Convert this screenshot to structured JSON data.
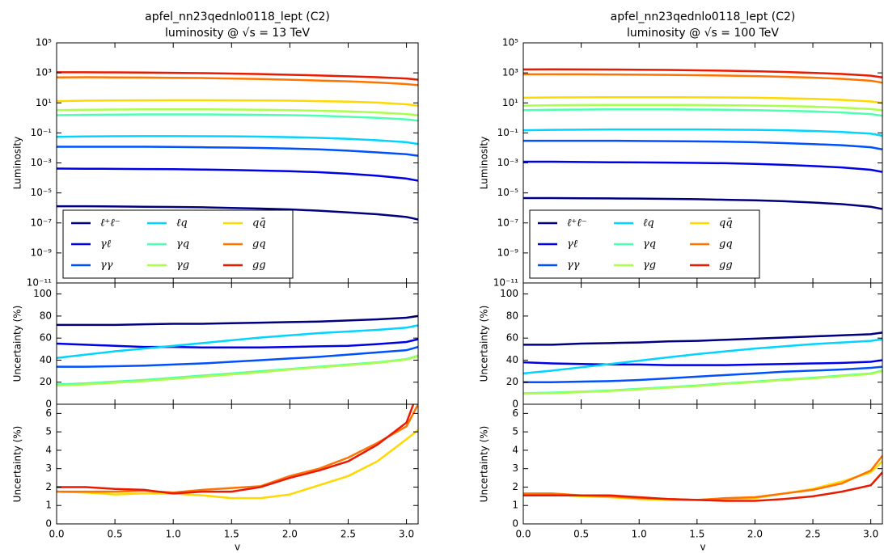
{
  "chart_data": [
    {
      "type": "line",
      "title": "apfel_nn23qednlo0118_lept (C2)",
      "subtitle": "luminosity @ √s = 13 TeV",
      "ylabel": "Luminosity",
      "log_scale": true,
      "legend": "lower left",
      "x": [
        0,
        0.25,
        0.5,
        0.75,
        1.0,
        1.25,
        1.5,
        1.75,
        2.0,
        2.25,
        2.5,
        2.75,
        3.0,
        3.1
      ],
      "xlim": [
        0,
        3.1
      ],
      "xticks": [
        0,
        0.5,
        1,
        1.5,
        2,
        2.5,
        3
      ],
      "ylim": [
        1e-11,
        100000
      ],
      "yticks": [
        {
          "value": 1e-11,
          "label": "10⁻¹¹"
        },
        {
          "value": 1e-09,
          "label": "10⁻⁹"
        },
        {
          "value": 1e-07,
          "label": "10⁻⁷"
        },
        {
          "value": 1e-05,
          "label": "10⁻⁵"
        },
        {
          "value": 0.001,
          "label": "10⁻³"
        },
        {
          "value": 0.1,
          "label": "10⁻¹"
        },
        {
          "value": 10,
          "label": "10¹"
        },
        {
          "value": 1000,
          "label": "10³"
        },
        {
          "value": 100000,
          "label": "10⁵"
        }
      ],
      "series": [
        {
          "name": "ℓ⁺ℓ⁻",
          "color": "#00007f",
          "values": [
            1.3e-06,
            1.3e-06,
            1.25e-06,
            1.2e-06,
            1.15e-06,
            1.1e-06,
            1e-06,
            9e-07,
            8e-07,
            6.5e-07,
            5e-07,
            3.8e-07,
            2.5e-07,
            1.7e-07
          ]
        },
        {
          "name": "γℓ",
          "color": "#0000e8",
          "values": [
            0.00042,
            0.00041,
            0.0004,
            0.00039,
            0.00038,
            0.00036,
            0.00034,
            0.00031,
            0.00028,
            0.00024,
            0.00019,
            0.00014,
            9e-05,
            6.5e-05
          ]
        },
        {
          "name": "γγ",
          "color": "#0050ff",
          "values": [
            0.012,
            0.012,
            0.012,
            0.012,
            0.0115,
            0.011,
            0.0105,
            0.01,
            0.009,
            0.008,
            0.0065,
            0.005,
            0.0038,
            0.003
          ]
        },
        {
          "name": "ℓq",
          "color": "#00d4ff",
          "values": [
            0.055,
            0.058,
            0.06,
            0.061,
            0.061,
            0.06,
            0.059,
            0.056,
            0.052,
            0.047,
            0.04,
            0.032,
            0.024,
            0.018
          ]
        },
        {
          "name": "γq",
          "color": "#4dffb0",
          "values": [
            1.5,
            1.6,
            1.65,
            1.7,
            1.7,
            1.7,
            1.65,
            1.6,
            1.5,
            1.4,
            1.2,
            1.0,
            0.8,
            0.65
          ]
        },
        {
          "name": "γg",
          "color": "#aaff4d",
          "values": [
            3.3,
            3.5,
            3.6,
            3.7,
            3.7,
            3.7,
            3.6,
            3.5,
            3.3,
            3.0,
            2.7,
            2.3,
            1.8,
            1.5
          ]
        },
        {
          "name": "qq̄",
          "color": "#ffd800",
          "values": [
            13,
            14,
            14.5,
            14.8,
            15,
            15,
            14.8,
            14.5,
            14,
            13,
            12,
            10.5,
            8,
            6.5
          ]
        },
        {
          "name": "gq",
          "color": "#ff7300",
          "values": [
            500,
            510,
            500,
            490,
            470,
            450,
            420,
            390,
            350,
            310,
            270,
            230,
            180,
            150
          ]
        },
        {
          "name": "gg",
          "color": "#e81a00",
          "values": [
            1100,
            1100,
            1080,
            1050,
            1000,
            960,
            900,
            830,
            750,
            670,
            590,
            510,
            420,
            350
          ]
        }
      ]
    },
    {
      "type": "line",
      "ylabel": "Uncertainty (%)",
      "x": [
        0,
        0.25,
        0.5,
        0.75,
        1.0,
        1.25,
        1.5,
        1.75,
        2.0,
        2.25,
        2.5,
        2.75,
        3.0,
        3.1
      ],
      "xlim": [
        0,
        3.1
      ],
      "xticks": [
        0,
        0.5,
        1,
        1.5,
        2,
        2.5,
        3
      ],
      "ylim": [
        0,
        110
      ],
      "yticks": [
        0,
        20,
        40,
        60,
        80,
        100
      ],
      "series": [
        {
          "color": "#00007f",
          "values": [
            72,
            72,
            72,
            72.5,
            73,
            73,
            73.5,
            74,
            74.5,
            75,
            76,
            77,
            78.5,
            80
          ]
        },
        {
          "color": "#0000e8",
          "values": [
            55,
            54,
            53,
            52,
            52,
            51.5,
            51.5,
            51.5,
            52,
            52.5,
            53,
            54.5,
            56.5,
            59
          ]
        },
        {
          "color": "#00d4ff",
          "values": [
            42,
            45,
            48,
            50.5,
            53,
            55.5,
            58,
            60.5,
            62.5,
            64.5,
            66,
            67.5,
            69.5,
            71.5
          ]
        },
        {
          "color": "#0050ff",
          "values": [
            34,
            34,
            34.5,
            35,
            36,
            37,
            38.5,
            40,
            41.5,
            43,
            45,
            47,
            49,
            52
          ]
        },
        {
          "color": "#4dffb0",
          "values": [
            18,
            19,
            20.5,
            22,
            24,
            26,
            28,
            30,
            32,
            34,
            36,
            38,
            41,
            44
          ]
        },
        {
          "color": "#aaff4d",
          "values": [
            17,
            18,
            19.5,
            21,
            23,
            25,
            27,
            29,
            31.5,
            33.5,
            35.5,
            37.5,
            40.5,
            43.5
          ]
        }
      ]
    },
    {
      "type": "line",
      "ylabel": "Uncertainty (%)",
      "xlabel": "v",
      "x": [
        0,
        0.25,
        0.5,
        0.75,
        1.0,
        1.25,
        1.5,
        1.75,
        2.0,
        2.25,
        2.5,
        2.75,
        3.0,
        3.1
      ],
      "xlim": [
        0,
        3.1
      ],
      "xticks": [
        {
          "value": 0,
          "label": "0.0"
        },
        {
          "value": 0.5,
          "label": "0.5"
        },
        {
          "value": 1,
          "label": "1.0"
        },
        {
          "value": 1.5,
          "label": "1.5"
        },
        {
          "value": 2,
          "label": "2.0"
        },
        {
          "value": 2.5,
          "label": "2.5"
        },
        {
          "value": 3,
          "label": "3.0"
        }
      ],
      "ylim": [
        0,
        6.5
      ],
      "yticks": [
        0,
        1,
        2,
        3,
        4,
        5,
        6
      ],
      "series": [
        {
          "color": "#ffd800",
          "values": [
            1.75,
            1.7,
            1.6,
            1.65,
            1.65,
            1.55,
            1.4,
            1.4,
            1.6,
            2.1,
            2.6,
            3.4,
            4.6,
            5.1
          ]
        },
        {
          "color": "#ff7300",
          "values": [
            1.75,
            1.75,
            1.75,
            1.8,
            1.7,
            1.85,
            1.95,
            2.05,
            2.6,
            3.0,
            3.6,
            4.4,
            5.3,
            6.5
          ]
        },
        {
          "color": "#e81a00",
          "values": [
            2.0,
            2.0,
            1.9,
            1.85,
            1.65,
            1.75,
            1.75,
            2.0,
            2.5,
            2.9,
            3.4,
            4.3,
            5.5,
            7.2
          ]
        }
      ]
    },
    {
      "type": "line",
      "title": "apfel_nn23qednlo0118_lept (C2)",
      "subtitle": "luminosity @ √s = 100 TeV",
      "ylabel": "Luminosity",
      "log_scale": true,
      "legend": "lower left",
      "x": [
        0,
        0.25,
        0.5,
        0.75,
        1.0,
        1.25,
        1.5,
        1.75,
        2.0,
        2.25,
        2.5,
        2.75,
        3.0,
        3.1
      ],
      "xlim": [
        0,
        3.1
      ],
      "xticks": [
        0,
        0.5,
        1,
        1.5,
        2,
        2.5,
        3
      ],
      "ylim": [
        1e-11,
        100000
      ],
      "yticks": [
        {
          "value": 1e-11,
          "label": "10⁻¹¹"
        },
        {
          "value": 1e-09,
          "label": "10⁻⁹"
        },
        {
          "value": 1e-07,
          "label": "10⁻⁷"
        },
        {
          "value": 1e-05,
          "label": "10⁻⁵"
        },
        {
          "value": 0.001,
          "label": "10⁻³"
        },
        {
          "value": 0.1,
          "label": "10⁻¹"
        },
        {
          "value": 10,
          "label": "10¹"
        },
        {
          "value": 1000,
          "label": "10³"
        },
        {
          "value": 100000,
          "label": "10⁵"
        }
      ],
      "series": [
        {
          "name": "ℓ⁺ℓ⁻",
          "color": "#00007f",
          "values": [
            4.5e-06,
            4.5e-06,
            4.4e-06,
            4.3e-06,
            4.2e-06,
            4e-06,
            3.8e-06,
            3.5e-06,
            3.2e-06,
            2.8e-06,
            2.3e-06,
            1.8e-06,
            1.2e-06,
            8.5e-07
          ]
        },
        {
          "name": "γℓ",
          "color": "#0000e8",
          "values": [
            0.0012,
            0.0012,
            0.00115,
            0.0011,
            0.00108,
            0.00105,
            0.001,
            0.00095,
            0.00085,
            0.00075,
            0.00062,
            0.0005,
            0.00035,
            0.00025
          ]
        },
        {
          "name": "γγ",
          "color": "#0050ff",
          "values": [
            0.03,
            0.03,
            0.03,
            0.03,
            0.029,
            0.028,
            0.027,
            0.026,
            0.024,
            0.021,
            0.018,
            0.015,
            0.011,
            0.008
          ]
        },
        {
          "name": "ℓq",
          "color": "#00d4ff",
          "values": [
            0.15,
            0.16,
            0.165,
            0.17,
            0.17,
            0.17,
            0.17,
            0.165,
            0.16,
            0.15,
            0.135,
            0.115,
            0.09,
            0.065
          ]
        },
        {
          "name": "γq",
          "color": "#4dffb0",
          "values": [
            3.3,
            3.5,
            3.6,
            3.7,
            3.7,
            3.7,
            3.6,
            3.5,
            3.3,
            3.0,
            2.7,
            2.3,
            1.8,
            1.4
          ]
        },
        {
          "name": "γg",
          "color": "#aaff4d",
          "values": [
            6.5,
            7,
            7.2,
            7.3,
            7.3,
            7.3,
            7.2,
            7,
            6.7,
            6.2,
            5.6,
            4.8,
            3.9,
            3.2
          ]
        },
        {
          "name": "qq̄",
          "color": "#ffd800",
          "values": [
            22,
            23,
            23.5,
            24,
            24,
            24,
            23.5,
            23,
            22,
            20.5,
            18.5,
            16,
            12.5,
            10
          ]
        },
        {
          "name": "gq",
          "color": "#ff7300",
          "values": [
            800,
            810,
            800,
            780,
            760,
            730,
            700,
            660,
            610,
            550,
            480,
            400,
            300,
            220
          ]
        },
        {
          "name": "gg",
          "color": "#e81a00",
          "values": [
            1700,
            1720,
            1700,
            1670,
            1620,
            1560,
            1480,
            1390,
            1280,
            1150,
            1000,
            840,
            650,
            500
          ]
        }
      ]
    },
    {
      "type": "line",
      "ylabel": "Uncertainty (%)",
      "x": [
        0,
        0.25,
        0.5,
        0.75,
        1.0,
        1.25,
        1.5,
        1.75,
        2.0,
        2.25,
        2.5,
        2.75,
        3.0,
        3.1
      ],
      "xlim": [
        0,
        3.1
      ],
      "xticks": [
        0,
        0.5,
        1,
        1.5,
        2,
        2.5,
        3
      ],
      "ylim": [
        0,
        110
      ],
      "yticks": [
        0,
        20,
        40,
        60,
        80,
        100
      ],
      "series": [
        {
          "color": "#00007f",
          "values": [
            54,
            54,
            55,
            55.5,
            56,
            57,
            57.5,
            58.5,
            59.5,
            60.5,
            61.5,
            62.5,
            63.5,
            65
          ]
        },
        {
          "color": "#0000e8",
          "values": [
            38,
            37,
            36.5,
            36,
            36,
            35.5,
            35.5,
            35.5,
            36,
            36.5,
            37,
            37.5,
            38.5,
            40
          ]
        },
        {
          "color": "#00d4ff",
          "values": [
            28,
            30.5,
            33.5,
            36.5,
            39.5,
            42.5,
            45.5,
            48,
            50.5,
            52.5,
            54.5,
            56,
            57.5,
            59
          ]
        },
        {
          "color": "#0050ff",
          "values": [
            20,
            20,
            20.5,
            21,
            22,
            23.5,
            25,
            26.5,
            28,
            29.5,
            30.5,
            31.5,
            33,
            34
          ]
        },
        {
          "color": "#4dffb0",
          "values": [
            10,
            10.5,
            11.5,
            12.5,
            14,
            15.5,
            17,
            19,
            20.5,
            22.5,
            24,
            26,
            28,
            30.5
          ]
        },
        {
          "color": "#aaff4d",
          "values": [
            9.5,
            10,
            11,
            12,
            13.5,
            15,
            16.5,
            18.5,
            20,
            22,
            23.5,
            25.5,
            27.5,
            30
          ]
        }
      ]
    },
    {
      "type": "line",
      "ylabel": "Uncertainty (%)",
      "xlabel": "v",
      "x": [
        0,
        0.25,
        0.5,
        0.75,
        1.0,
        1.25,
        1.5,
        1.75,
        2.0,
        2.25,
        2.5,
        2.75,
        3.0,
        3.1
      ],
      "xlim": [
        0,
        3.1
      ],
      "xticks": [
        {
          "value": 0,
          "label": "0.0"
        },
        {
          "value": 0.5,
          "label": "0.5"
        },
        {
          "value": 1,
          "label": "1.0"
        },
        {
          "value": 1.5,
          "label": "1.5"
        },
        {
          "value": 2,
          "label": "2.0"
        },
        {
          "value": 2.5,
          "label": "2.5"
        },
        {
          "value": 3,
          "label": "3.0"
        }
      ],
      "ylim": [
        0,
        6.5
      ],
      "yticks": [
        0,
        1,
        2,
        3,
        4,
        5,
        6
      ],
      "series": [
        {
          "color": "#ffd800",
          "values": [
            1.6,
            1.6,
            1.5,
            1.45,
            1.35,
            1.3,
            1.3,
            1.35,
            1.4,
            1.65,
            1.9,
            2.3,
            2.8,
            3.4
          ]
        },
        {
          "color": "#ff7300",
          "values": [
            1.65,
            1.65,
            1.55,
            1.5,
            1.4,
            1.35,
            1.3,
            1.4,
            1.45,
            1.65,
            1.85,
            2.2,
            2.9,
            3.7
          ]
        },
        {
          "color": "#e81a00",
          "values": [
            1.55,
            1.55,
            1.55,
            1.55,
            1.45,
            1.35,
            1.3,
            1.25,
            1.25,
            1.35,
            1.5,
            1.75,
            2.1,
            2.8
          ]
        }
      ]
    }
  ]
}
